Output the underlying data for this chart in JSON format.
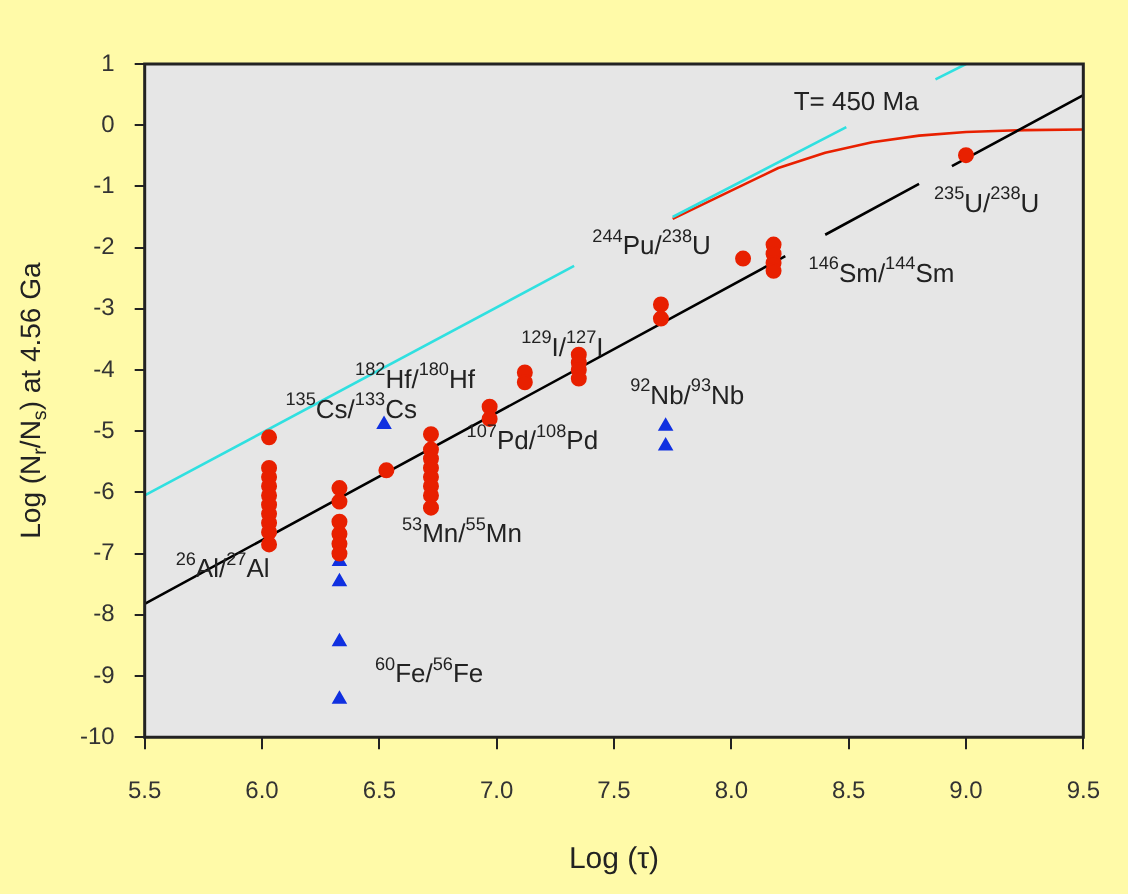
{
  "chart_data": {
    "type": "scatter",
    "xlabel": "Log (τ)",
    "ylabel": "Log (N$_{r}$/N$_{s}$) at 4.56 Ga",
    "xlim": [
      5.5,
      9.5
    ],
    "xticks": [
      5.5,
      {
        "value": 6,
        "label": "6.0"
      },
      6.5,
      {
        "value": 7,
        "label": "7.0"
      },
      7.5,
      {
        "value": 8,
        "label": "8.0"
      },
      8.5,
      {
        "value": 9,
        "label": "9.0"
      },
      9.5
    ],
    "ylim": [
      -10,
      1
    ],
    "yticks": [
      -10,
      -9,
      -8,
      -7,
      -6,
      -5,
      -4,
      -3,
      -2,
      -1,
      0,
      1
    ],
    "grid": false,
    "legend": false,
    "series": [
      {
        "marker": "circle",
        "color": "#e82000",
        "x": [
          6.03,
          6.03,
          6.03,
          6.03,
          6.03,
          6.03,
          6.03,
          6.03,
          6.03,
          6.03,
          6.33,
          6.33,
          6.33,
          6.33,
          6.33,
          6.33,
          6.53,
          6.72,
          6.72,
          6.72,
          6.72,
          6.72,
          6.72,
          6.72,
          6.72,
          6.97,
          6.97,
          7.12,
          7.12,
          7.35,
          7.35,
          7.35,
          7.35,
          7.7,
          7.7,
          8.05,
          8.18,
          8.18,
          8.18,
          8.18,
          9.0
        ],
        "values": [
          -5.1,
          -5.6,
          -5.75,
          -5.9,
          -6.05,
          -6.2,
          -6.35,
          -6.5,
          -6.65,
          -6.85,
          -5.93,
          -6.15,
          -6.48,
          -6.68,
          -6.84,
          -7.0,
          -5.64,
          -5.05,
          -5.3,
          -5.45,
          -5.6,
          -5.75,
          -5.9,
          -6.05,
          -6.25,
          -4.6,
          -4.8,
          -4.04,
          -4.2,
          -3.75,
          -3.88,
          -4.0,
          -4.14,
          -2.93,
          -3.16,
          -2.18,
          -1.95,
          -2.1,
          -2.25,
          -2.38,
          -0.49
        ]
      },
      {
        "marker": "triangle",
        "color": "#1030e0",
        "x": [
          6.33,
          6.33,
          6.33,
          6.33,
          6.52,
          7.72,
          7.72
        ],
        "values": [
          -7.13,
          -7.46,
          -8.44,
          -9.38,
          -4.89,
          -4.92,
          -5.24
        ]
      },
      {
        "type": "line",
        "marker": "none",
        "color": "#000000",
        "x": [
          5.5,
          8.23,
          8.3,
          8.4,
          8.8,
          8.87,
          8.94,
          9.5
        ],
        "values": [
          -7.82,
          -2.14,
          null,
          -1.79,
          -0.96,
          null,
          -0.67,
          0.49
        ]
      },
      {
        "type": "line",
        "marker": "none",
        "color": "#30e0e0",
        "x": [
          5.5,
          7.33,
          7.5,
          7.75,
          8.49,
          8.7,
          8.87,
          9.0
        ],
        "values": [
          -6.05,
          -2.3,
          null,
          -1.5,
          -0.03,
          null,
          0.75,
          1.0
        ]
      },
      {
        "type": "line",
        "marker": "none",
        "color": "#e82000",
        "x": [
          7.75,
          8.2,
          8.4,
          8.6,
          8.8,
          9.0,
          9.25,
          9.5
        ],
        "values": [
          -1.53,
          -0.7,
          -0.45,
          -0.28,
          -0.17,
          -0.11,
          -0.08,
          -0.07
        ]
      }
    ],
    "annotations": [
      "$^{26}$Al/$^{27}$Al",
      "$^{60}$Fe/$^{56}$Fe",
      "$^{53}$Mn/$^{55}$Mn",
      "$^{107}$Pd/$^{108}$Pd",
      "$^{135}$Cs/$^{133}$Cs",
      "$^{182}$Hf/$^{180}$Hf",
      "$^{129}$I/$^{127}$I",
      "$^{92}$Nb/$^{93}$Nb",
      "$^{244}$Pu/$^{238}$U",
      "$^{146}$Sm/$^{144}$Sm",
      "$^{235}$U/$^{238}$U",
      "T= 450 Ma"
    ]
  }
}
